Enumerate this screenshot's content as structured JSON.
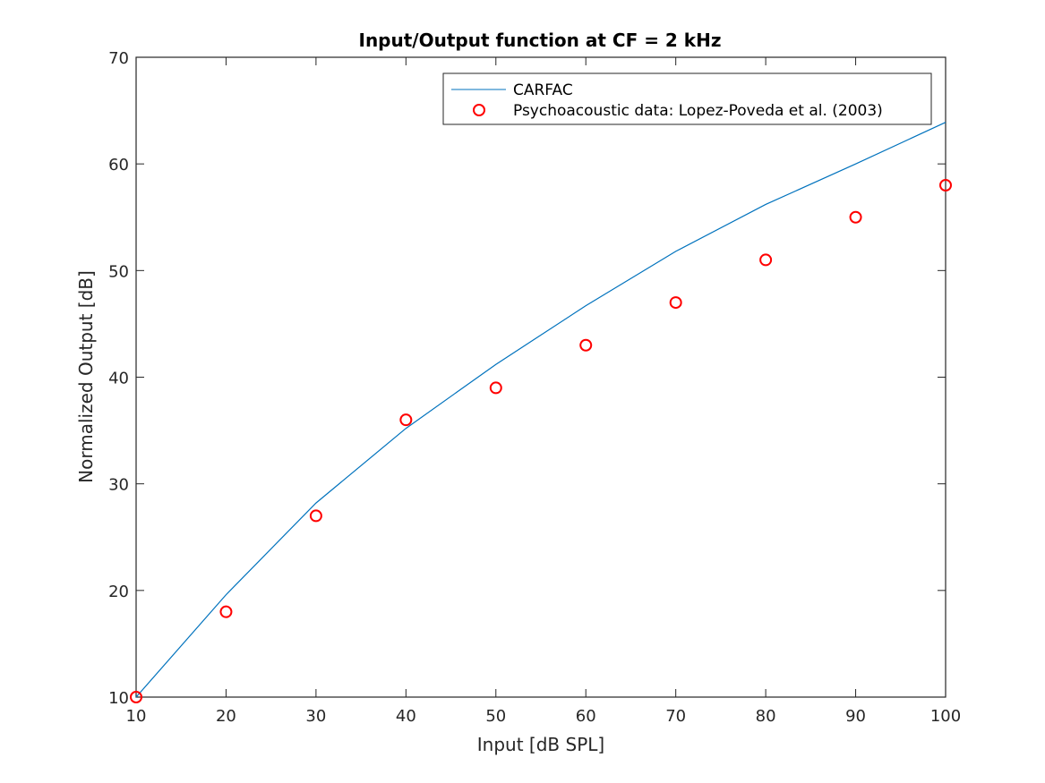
{
  "chart_data": {
    "type": "line",
    "title": "Input/Output function at CF = 2 kHz",
    "xlabel": "Input [dB SPL]",
    "ylabel": "Normalized Output [dB]",
    "xlim": [
      10,
      100
    ],
    "ylim": [
      10,
      70
    ],
    "xticks": [
      10,
      20,
      30,
      40,
      50,
      60,
      70,
      80,
      90,
      100
    ],
    "yticks": [
      10,
      20,
      30,
      40,
      50,
      60,
      70
    ],
    "grid": false,
    "legend_position": "upper right",
    "x": [
      10,
      20,
      30,
      40,
      50,
      60,
      70,
      80,
      90,
      100
    ],
    "series": [
      {
        "name": "CARFAC",
        "style": "line",
        "color": "#0072BD",
        "values": [
          10.0,
          19.6,
          28.2,
          35.2,
          41.2,
          46.7,
          51.8,
          56.2,
          60.0,
          63.9
        ]
      },
      {
        "name": "Psychoacoustic data: Lopez-Poveda et al. (2003)",
        "style": "marker-circle",
        "color": "#FF0000",
        "values": [
          10,
          18,
          27,
          36,
          39,
          43,
          47,
          51,
          55,
          58
        ]
      }
    ]
  },
  "figure": {
    "title": "Input/Output function at CF = 2 kHz",
    "xlabel": "Input [dB SPL]",
    "ylabel": "Normalized Output [dB]",
    "legend": {
      "entry1": "CARFAC",
      "entry2": "Psychoacoustic data: Lopez-Poveda et al. (2003)"
    }
  }
}
